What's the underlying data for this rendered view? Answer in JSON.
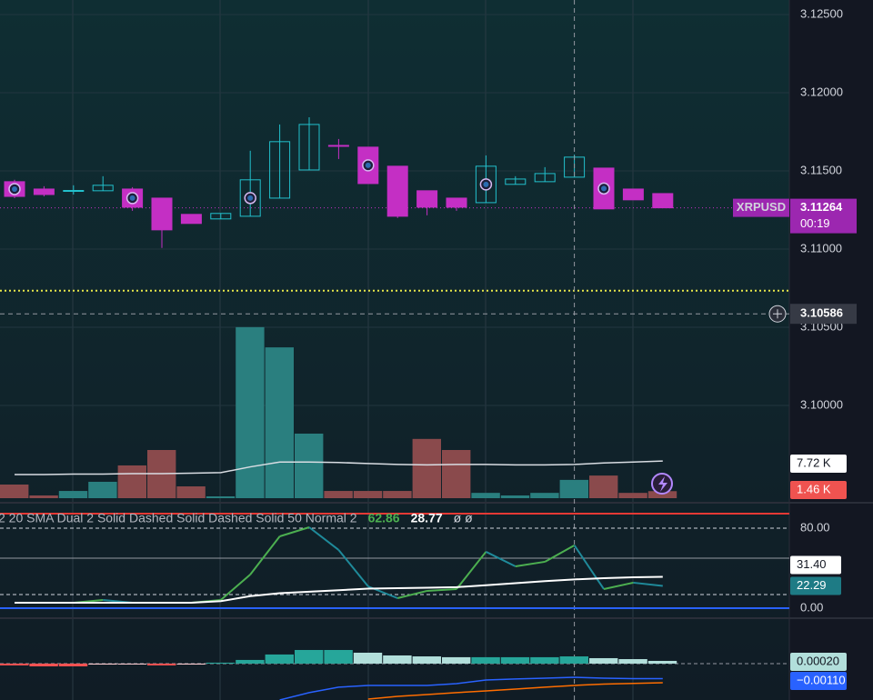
{
  "chart_data": [
    {
      "type": "candlestick",
      "symbol": "XRPUSD",
      "countdown": "00:19",
      "open": [
        3.11431,
        3.11384,
        3.11373,
        3.11373,
        3.11384,
        3.11326,
        3.11222,
        3.11193,
        3.1121,
        3.11326,
        3.11506,
        3.11663,
        3.11652,
        3.1153,
        3.11373,
        3.11326,
        3.11297,
        3.11414,
        3.11431,
        3.1146,
        3.11518,
        3.11384,
        3.11355
      ],
      "high": [
        3.11443,
        3.11402,
        3.11408,
        3.11466,
        3.11396,
        3.11326,
        3.11222,
        3.11228,
        3.11629,
        3.11797,
        3.11843,
        3.11704,
        3.11652,
        3.1153,
        3.11373,
        3.11326,
        3.11599,
        3.11466,
        3.11524,
        3.11605,
        3.11518,
        3.11384,
        3.11355
      ],
      "low": [
        3.11326,
        3.11337,
        3.11349,
        3.11373,
        3.11245,
        3.11007,
        3.11164,
        3.11193,
        3.1121,
        3.11326,
        3.11506,
        3.11576,
        3.11419,
        3.11199,
        3.11216,
        3.11245,
        3.11297,
        3.11414,
        3.11431,
        3.1146,
        3.11257,
        3.11315,
        3.11264
      ],
      "close": [
        3.11337,
        3.11349,
        3.11375,
        3.11408,
        3.11268,
        3.11123,
        3.11164,
        3.11228,
        3.11443,
        3.11687,
        3.11797,
        3.11661,
        3.11419,
        3.1121,
        3.11268,
        3.11268,
        3.1153,
        3.11448,
        3.11483,
        3.11588,
        3.11257,
        3.11315,
        3.11264
      ],
      "up_color": "#22c0cc",
      "down_color": "#c42fc4",
      "ylim": [
        3.09407,
        3.12593
      ],
      "yticks": [
        {
          "value": 3.125,
          "label": "3.12500"
        },
        {
          "value": 3.12,
          "label": "3.12000"
        },
        {
          "value": 3.115,
          "label": "3.11500"
        },
        {
          "value": 3.11,
          "label": "3.11000"
        },
        {
          "value": 3.105,
          "label": "3.10500"
        },
        {
          "value": 3.1,
          "label": "3.10000"
        }
      ],
      "last_price": {
        "value": 3.11264,
        "label": "3.11264"
      },
      "crosshair_price": {
        "value": 3.10586,
        "label": "3.10586"
      },
      "alert_price": 3.10734,
      "alert_color": "#e6e64a"
    },
    {
      "type": "volume",
      "values": [
        2.83,
        0.57,
        1.5,
        3.4,
        6.8,
        10.0,
        2.45,
        0.38,
        35.5,
        31.3,
        13.4,
        1.5,
        1.5,
        1.5,
        12.3,
        10.0,
        1.1,
        0.57,
        1.1,
        3.8,
        4.7,
        1.1,
        1.46
      ],
      "value_labels": [
        null,
        null,
        null,
        null,
        null,
        null,
        null,
        null,
        null,
        null,
        null,
        null,
        null,
        null,
        null,
        null,
        null,
        null,
        null,
        null,
        null,
        null,
        "1.46 K"
      ],
      "up_color": "#2a7f7f",
      "down_color": "#8a4a4c",
      "ylim": [
        0,
        103.4
      ],
      "ma": {
        "color": "#d9dde3",
        "values": [
          4.9,
          4.9,
          5.0,
          5.0,
          5.1,
          5.1,
          5.2,
          5.3,
          6.5,
          7.5,
          7.5,
          7.4,
          7.2,
          7.0,
          6.9,
          7.0,
          7.0,
          6.9,
          6.9,
          7.0,
          7.3,
          7.5,
          7.72
        ],
        "value_labels": [
          null,
          null,
          null,
          null,
          null,
          null,
          null,
          null,
          null,
          null,
          null,
          null,
          null,
          null,
          null,
          null,
          null,
          null,
          null,
          null,
          null,
          null,
          "7.72 K"
        ]
      }
    },
    {
      "type": "line",
      "legend": "2 20 SMA Dual 2 Solid Dashed Solid Dashed Solid 50 Normal 2",
      "na_values": "ø ø",
      "ylim": [
        -10,
        102.7
      ],
      "yticks": [
        {
          "value": 80,
          "label": "80.00"
        },
        {
          "value": 0,
          "label": "0.00"
        }
      ],
      "levels": [
        {
          "value": 94.5,
          "color": "#e53935",
          "dash": "none"
        },
        {
          "value": 80,
          "color": "#d1d4dc",
          "dash": "4 3"
        },
        {
          "value": 50,
          "color": "#9598a1",
          "dash": "none"
        },
        {
          "value": 13.6,
          "color": "#d1d4dc",
          "dash": "4 3"
        },
        {
          "value": 0,
          "color": "#2962ff",
          "dash": "none"
        }
      ],
      "series": [
        {
          "color": "#4caf50",
          "fall_color": "#1f8a9a",
          "label_color": "#1e7b85",
          "values": [
            5.5,
            5.5,
            5.5,
            8.2,
            5.5,
            5.5,
            5.5,
            8.2,
            33.6,
            71.8,
            80.9,
            58.2,
            21.8,
            10,
            17.3,
            19.1,
            56.4,
            41.8,
            46.4,
            62.86,
            19.1,
            25.5,
            22.29
          ],
          "value_labels": [
            null,
            null,
            null,
            null,
            null,
            null,
            null,
            null,
            null,
            null,
            null,
            null,
            null,
            null,
            null,
            null,
            null,
            null,
            null,
            "62.86",
            null,
            null,
            "22.29"
          ]
        },
        {
          "color": "#ffffff",
          "fall_color": "#ffffff",
          "label_color": "#ffffff",
          "values": [
            5.5,
            5.5,
            5.5,
            5.5,
            5.5,
            5.5,
            5.5,
            7,
            12,
            15,
            16.5,
            18,
            19.5,
            20,
            20.5,
            21,
            23,
            25,
            27,
            28.77,
            30,
            30.9,
            31.4
          ],
          "value_labels": [
            null,
            null,
            null,
            null,
            null,
            null,
            null,
            null,
            null,
            null,
            null,
            null,
            null,
            null,
            null,
            null,
            null,
            null,
            null,
            "28.77",
            null,
            null,
            "31.40"
          ]
        }
      ]
    },
    {
      "type": "macd",
      "ylim": [
        -0.00267,
        0.0032
      ],
      "histogram": [
        -0.00013,
        -0.0002,
        -0.0002,
        -7e-05,
        -3e-05,
        -0.00013,
        -7e-05,
        7e-05,
        0.00027,
        0.00067,
        0.001,
        0.001,
        0.0008,
        0.0006,
        0.00053,
        0.00047,
        0.00047,
        0.00047,
        0.00047,
        0.00053,
        0.0004,
        0.00033,
        0.0002
      ],
      "histogram_labels": [
        null,
        null,
        null,
        null,
        null,
        null,
        null,
        null,
        null,
        null,
        null,
        null,
        null,
        null,
        null,
        null,
        null,
        null,
        null,
        null,
        null,
        null,
        "0.00020"
      ],
      "pos_color": "#26a69a",
      "pos_fade_color": "#b2dfdb",
      "neg_color": "#ff5252",
      "neg_fade_color": "#ffcdd2",
      "macd": {
        "color": "#2962ff",
        "values": [
          null,
          null,
          null,
          null,
          null,
          null,
          null,
          null,
          null,
          -0.00267,
          -0.00213,
          -0.00173,
          -0.0016,
          -0.0016,
          -0.0016,
          -0.00147,
          -0.0012,
          -0.00113,
          -0.00107,
          -0.001,
          -0.00107,
          -0.0011,
          -0.0011
        ],
        "value_labels": [
          null,
          null,
          null,
          null,
          null,
          null,
          null,
          null,
          null,
          null,
          null,
          null,
          null,
          null,
          null,
          null,
          null,
          null,
          null,
          null,
          null,
          null,
          "−0.00110"
        ]
      },
      "signal": {
        "color": "#ff6d00",
        "values": [
          null,
          null,
          null,
          null,
          null,
          null,
          null,
          null,
          null,
          null,
          null,
          null,
          -0.0026,
          -0.0024,
          -0.00227,
          -0.00213,
          -0.002,
          -0.00187,
          -0.00173,
          -0.0016,
          -0.0015,
          -0.00145,
          -0.0014
        ]
      }
    }
  ]
}
